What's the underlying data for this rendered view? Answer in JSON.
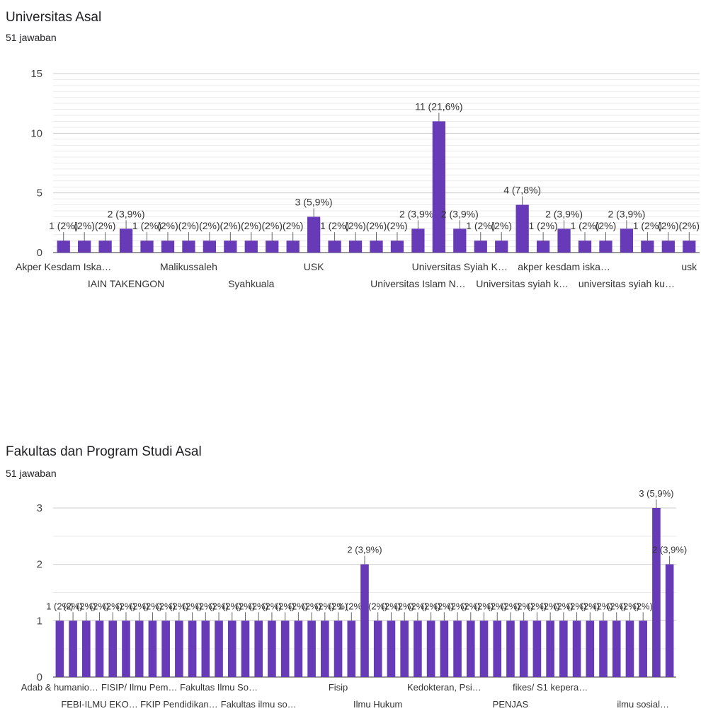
{
  "charts": [
    {
      "title": "Universitas Asal",
      "subtitle": "51 jawaban",
      "chart_data": {
        "type": "bar",
        "ylim": [
          0,
          15
        ],
        "yticks": [
          0,
          5,
          10,
          15
        ],
        "grid": true,
        "bar_color": "#673ab7",
        "categories": [
          "Akper Kesdam Iska…",
          "",
          "",
          "IAIN TAKENGON",
          "",
          "",
          "Malikussaleh",
          "",
          "",
          "Syahkuala",
          "",
          "",
          "USK",
          "",
          "",
          "",
          "",
          "Universitas Islam N…",
          "",
          "Universitas Syiah K…",
          "",
          "",
          "Universitas syiah k…",
          "",
          "akper kesdam iska…",
          "",
          "",
          "universitas syiah ku…",
          "",
          "",
          "usk"
        ],
        "values": [
          1,
          1,
          1,
          2,
          1,
          1,
          1,
          1,
          1,
          1,
          1,
          1,
          3,
          1,
          1,
          1,
          1,
          2,
          11,
          2,
          1,
          1,
          4,
          1,
          2,
          1,
          1,
          2,
          1,
          1,
          1
        ],
        "data_labels": [
          "1 (2%)",
          "(2%)",
          "(2%)",
          "2 (3,9%)",
          "1 (2%)",
          "(2%)",
          "(2%)",
          "(2%)",
          "(2%)",
          "(2%)",
          "(2%)",
          "(2%)",
          "3 (5,9%)",
          "1 (2%)",
          "(2%)",
          "(2%)",
          "(2%)",
          "2 (3,9%)",
          "11 (21,6%)",
          "2 (3,9%)",
          "1 (2%)",
          "(2%)",
          "4 (7,8%)",
          "1 (2%)",
          "2 (3,9%)",
          "1 (2%)",
          "(2%)",
          "2 (3,9%)",
          "1 (2%)",
          "(2%)",
          "(2%)"
        ]
      }
    },
    {
      "title": "Fakultas dan Program Studi Asal",
      "subtitle": "51 jawaban",
      "chart_data": {
        "type": "bar",
        "ylim": [
          0,
          3
        ],
        "yticks": [
          0,
          1,
          2,
          3
        ],
        "grid": true,
        "bar_color": "#673ab7",
        "categories": [
          "Adab & humanio…",
          "",
          "",
          "FEBI-ILMU EKO…",
          "",
          "",
          "FISIP/ Ilmu Pem…",
          "",
          "",
          "FKIP Pendidikan…",
          "",
          "",
          "Fakultas Ilmu So…",
          "",
          "",
          "Fakultas ilmu so…",
          "",
          "",
          "",
          "",
          "",
          "Fisip",
          "",
          "",
          "Ilmu Hukum",
          "",
          "",
          "",
          "",
          "Kedokteran, Psi…",
          "",
          "",
          "",
          "",
          "PENJAS",
          "",
          "",
          "fikes/ S1 kepera…",
          "",
          "",
          "",
          "",
          "",
          "",
          "ilmu sosial…",
          "",
          ""
        ],
        "values": [
          1,
          1,
          1,
          1,
          1,
          1,
          1,
          1,
          1,
          1,
          1,
          1,
          1,
          1,
          1,
          1,
          1,
          1,
          1,
          1,
          1,
          1,
          1,
          2,
          1,
          1,
          1,
          1,
          1,
          1,
          1,
          1,
          1,
          1,
          1,
          1,
          1,
          1,
          1,
          1,
          1,
          1,
          1,
          1,
          1,
          3,
          2
        ],
        "data_labels": [
          "1 (2%)",
          "(2%)",
          "(2%)",
          "(2%)",
          "(2%)",
          "(2%)",
          "(2%)",
          "(2%)",
          "(2%)",
          "(2%)",
          "(2%)",
          "(2%)",
          "(2%)",
          "(2%)",
          "(2%)",
          "(2%)",
          "(2%)",
          "(2%)",
          "(2%)",
          "(2%)",
          "(2%)",
          "(2%)",
          "1 (2%)",
          "2 (3,9%)",
          "(2%)",
          "(2%)",
          "(2%)",
          "(2%)",
          "(2%)",
          "(2%)",
          "(2%)",
          "(2%)",
          "(2%)",
          "(2%)",
          "(2%)",
          "(2%)",
          "(2%)",
          "(2%)",
          "(2%)",
          "(2%)",
          "(2%)",
          "(2%)",
          "(2%)",
          "(2%)",
          "(2%)",
          "3 (5,9%)",
          "2 (3,9%)"
        ]
      }
    }
  ]
}
